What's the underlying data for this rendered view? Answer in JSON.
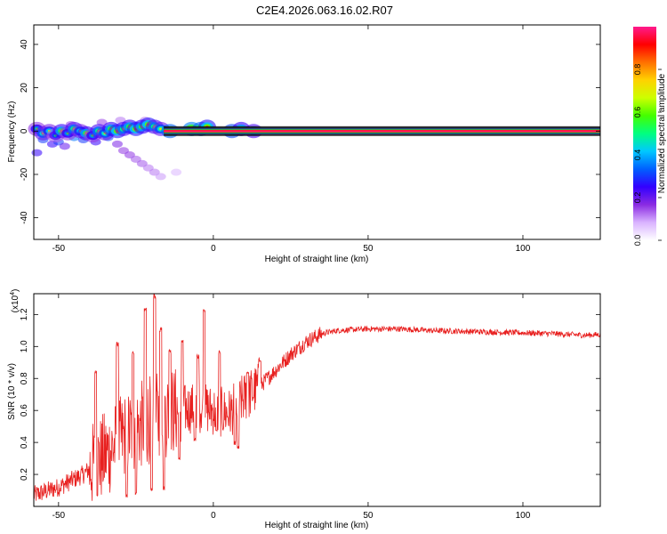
{
  "title": "C2E4.2026.063.16.02.R07",
  "chart_data": [
    {
      "type": "heatmap",
      "name": "spectrogram",
      "xlabel": "Height of straight line (km)",
      "ylabel": "Frequency (Hz)",
      "xlim": [
        -58,
        125
      ],
      "ylim": [
        -50,
        49
      ],
      "xticks": [
        -50,
        0,
        50,
        100
      ],
      "yticks": [
        -40,
        -20,
        0,
        20,
        40
      ],
      "ytick_labels": [
        "-40",
        "-20",
        "0",
        "20",
        "40"
      ],
      "xtick_labels": [
        "-50",
        "0",
        "50",
        "100"
      ],
      "carrier_frequency_hz": 0,
      "colorbar": {
        "label": "Normalized spectral amplitude",
        "range": [
          0,
          1
        ],
        "ticks": [
          0.0,
          0.2,
          0.4,
          0.6,
          0.8
        ],
        "tick_labels": [
          "0.0",
          "0.2",
          "0.4",
          "0.6",
          "0.8"
        ],
        "colors": [
          "#ffffff",
          "#d9b3ff",
          "#8a2be2",
          "#3300ff",
          "#0060ff",
          "#00c8ff",
          "#00ff80",
          "#44ff00",
          "#ccff00",
          "#ffd200",
          "#ff7000",
          "#ff0000",
          "#ff1a8c"
        ]
      },
      "blobs": [
        {
          "x": -57,
          "f": 1,
          "a": 0.35
        },
        {
          "x": -55,
          "f": -1,
          "a": 0.45
        },
        {
          "x": -53,
          "f": 0,
          "a": 0.4
        },
        {
          "x": -51,
          "f": -2,
          "a": 0.3
        },
        {
          "x": -49,
          "f": 0,
          "a": 0.55
        },
        {
          "x": -47,
          "f": -1,
          "a": 0.35
        },
        {
          "x": -45,
          "f": 1,
          "a": 0.5
        },
        {
          "x": -43,
          "f": 0,
          "a": 0.4
        },
        {
          "x": -41,
          "f": -1,
          "a": 0.55
        },
        {
          "x": -39,
          "f": -2,
          "a": 0.35
        },
        {
          "x": -37,
          "f": 0,
          "a": 0.5
        },
        {
          "x": -35,
          "f": -1,
          "a": 0.45
        },
        {
          "x": -33,
          "f": 1,
          "a": 0.55
        },
        {
          "x": -31,
          "f": 0,
          "a": 0.6
        },
        {
          "x": -29,
          "f": 1,
          "a": 0.5
        },
        {
          "x": -27,
          "f": 2,
          "a": 0.55
        },
        {
          "x": -25,
          "f": 1,
          "a": 0.6
        },
        {
          "x": -23,
          "f": 2,
          "a": 0.55
        },
        {
          "x": -21,
          "f": 3,
          "a": 0.6
        },
        {
          "x": -19,
          "f": 2,
          "a": 0.5
        },
        {
          "x": -17,
          "f": 1,
          "a": 0.45
        },
        {
          "x": -14,
          "f": 0,
          "a": 0.75
        },
        {
          "x": -7,
          "f": 1,
          "a": 0.8
        },
        {
          "x": -4,
          "f": 1,
          "a": 0.75
        },
        {
          "x": -2,
          "f": 2,
          "a": 0.6
        },
        {
          "x": 6,
          "f": 0,
          "a": 0.7
        },
        {
          "x": 9,
          "f": 1,
          "a": 0.55
        },
        {
          "x": 13,
          "f": 0,
          "a": 0.5
        }
      ],
      "scatter_tail": [
        {
          "x": -55,
          "f": -4,
          "a": 0.3
        },
        {
          "x": -52,
          "f": -6,
          "a": 0.25
        },
        {
          "x": -50,
          "f": -5,
          "a": 0.3
        },
        {
          "x": -48,
          "f": -7,
          "a": 0.2
        },
        {
          "x": -45,
          "f": -3,
          "a": 0.35
        },
        {
          "x": -42,
          "f": -4,
          "a": 0.3
        },
        {
          "x": -38,
          "f": -5,
          "a": 0.25
        },
        {
          "x": -34,
          "f": -3,
          "a": 0.3
        },
        {
          "x": -57,
          "f": -10,
          "a": 0.25
        },
        {
          "x": -31,
          "f": -6,
          "a": 0.18
        },
        {
          "x": -29,
          "f": -9,
          "a": 0.16
        },
        {
          "x": -27,
          "f": -11,
          "a": 0.16
        },
        {
          "x": -25,
          "f": -13,
          "a": 0.14
        },
        {
          "x": -23,
          "f": -15,
          "a": 0.14
        },
        {
          "x": -21,
          "f": -17,
          "a": 0.12
        },
        {
          "x": -19,
          "f": -19,
          "a": 0.12
        },
        {
          "x": -17,
          "f": -21,
          "a": 0.1
        },
        {
          "x": -12,
          "f": -19,
          "a": 0.08
        },
        {
          "x": -36,
          "f": 4,
          "a": 0.15
        },
        {
          "x": -30,
          "f": 5,
          "a": 0.12
        },
        {
          "x": -22,
          "f": 5,
          "a": 0.12
        },
        {
          "x": -46,
          "f": 3,
          "a": 0.15
        }
      ]
    },
    {
      "type": "line",
      "name": "snr",
      "xlabel": "Height of straight line (km)",
      "ylabel": "SNR (10 * v/v)",
      "y_multiplier_label": "(x10",
      "y_multiplier_exp": "4",
      "y_multiplier_close": ")",
      "xlim": [
        -58,
        125
      ],
      "ylim": [
        0.0,
        1.33
      ],
      "xticks": [
        -50,
        0,
        50,
        100
      ],
      "xtick_labels": [
        "-50",
        "0",
        "50",
        "100"
      ],
      "yticks": [
        0.2,
        0.4,
        0.6,
        0.8,
        1.0,
        1.2
      ],
      "ytick_labels": [
        "0.2",
        "0.4",
        "0.6",
        "0.8",
        "1.0",
        "1.2"
      ],
      "color": "#e8201f",
      "envelope": [
        {
          "x": -58,
          "y": 0.07
        },
        {
          "x": -50,
          "y": 0.12
        },
        {
          "x": -42,
          "y": 0.2
        },
        {
          "x": -35,
          "y": 0.32
        },
        {
          "x": -28,
          "y": 0.45
        },
        {
          "x": -20,
          "y": 0.55
        },
        {
          "x": -12,
          "y": 0.6
        },
        {
          "x": -5,
          "y": 0.62
        },
        {
          "x": 0,
          "y": 0.6
        },
        {
          "x": 5,
          "y": 0.58
        },
        {
          "x": 10,
          "y": 0.68
        },
        {
          "x": 15,
          "y": 0.75
        },
        {
          "x": 20,
          "y": 0.85
        },
        {
          "x": 25,
          "y": 0.95
        },
        {
          "x": 30,
          "y": 1.03
        },
        {
          "x": 35,
          "y": 1.08
        },
        {
          "x": 40,
          "y": 1.1
        },
        {
          "x": 50,
          "y": 1.11
        },
        {
          "x": 60,
          "y": 1.11
        },
        {
          "x": 70,
          "y": 1.1
        },
        {
          "x": 80,
          "y": 1.095
        },
        {
          "x": 90,
          "y": 1.09
        },
        {
          "x": 100,
          "y": 1.085
        },
        {
          "x": 110,
          "y": 1.08
        },
        {
          "x": 120,
          "y": 1.07
        },
        {
          "x": 125,
          "y": 1.075
        }
      ],
      "spikes": [
        {
          "x": -38,
          "y": 0.85
        },
        {
          "x": -31,
          "y": 1.03
        },
        {
          "x": -26,
          "y": 0.97
        },
        {
          "x": -22,
          "y": 1.25
        },
        {
          "x": -19,
          "y": 1.33
        },
        {
          "x": -17,
          "y": 1.12
        },
        {
          "x": -14,
          "y": 0.98
        },
        {
          "x": -10,
          "y": 1.05
        },
        {
          "x": -5,
          "y": 0.95
        },
        {
          "x": -3,
          "y": 1.23
        },
        {
          "x": 2,
          "y": 0.98
        },
        {
          "x": 7,
          "y": 0.88
        },
        {
          "x": 11,
          "y": 0.85
        },
        {
          "x": 15,
          "y": 0.93
        }
      ],
      "dips": [
        {
          "x": -28,
          "y": 0.05
        },
        {
          "x": -25,
          "y": 0.07
        },
        {
          "x": -20,
          "y": 0.08
        },
        {
          "x": -16,
          "y": 0.1
        },
        {
          "x": -11,
          "y": 0.28
        },
        {
          "x": -6,
          "y": 0.4
        },
        {
          "x": 1,
          "y": 0.45
        },
        {
          "x": 7,
          "y": 0.38
        },
        {
          "x": 8,
          "y": 0.35
        }
      ]
    }
  ]
}
